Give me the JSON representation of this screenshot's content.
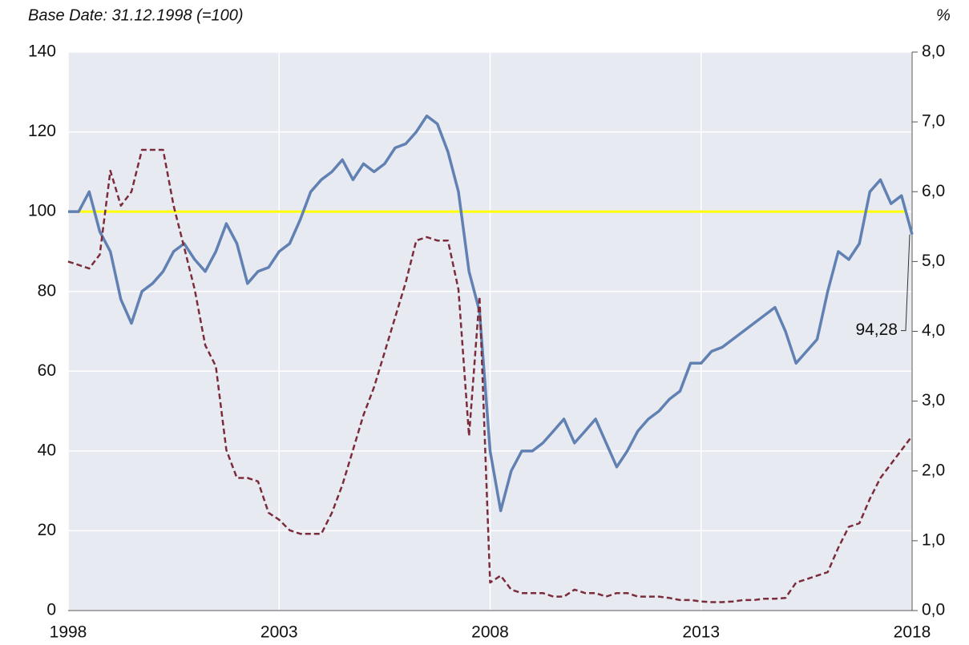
{
  "chart_data": {
    "type": "line",
    "subtitle": "Base Date: 31.12.1998 (=100)",
    "y2_unit": "%",
    "x": [
      1998,
      1998.25,
      1998.5,
      1998.75,
      1999,
      1999.25,
      1999.5,
      1999.75,
      2000,
      2000.25,
      2000.5,
      2000.75,
      2001,
      2001.25,
      2001.5,
      2001.75,
      2002,
      2002.25,
      2002.5,
      2002.75,
      2003,
      2003.25,
      2003.5,
      2003.75,
      2004,
      2004.25,
      2004.5,
      2004.75,
      2005,
      2005.25,
      2005.5,
      2005.75,
      2006,
      2006.25,
      2006.5,
      2006.75,
      2007,
      2007.25,
      2007.5,
      2007.75,
      2008,
      2008.25,
      2008.5,
      2008.75,
      2009,
      2009.25,
      2009.5,
      2009.75,
      2010,
      2010.25,
      2010.5,
      2010.75,
      2011,
      2011.25,
      2011.5,
      2011.75,
      2012,
      2012.25,
      2012.5,
      2012.75,
      2013,
      2013.25,
      2013.5,
      2013.75,
      2014,
      2014.25,
      2014.5,
      2014.75,
      2015,
      2015.25,
      2015.5,
      2015.75,
      2016,
      2016.25,
      2016.5,
      2016.75,
      2017,
      2017.25,
      2017.5,
      2017.75,
      2018
    ],
    "series": [
      {
        "color": "#6181b3",
        "axis": "y",
        "values": [
          100,
          100,
          105,
          95,
          90,
          78,
          72,
          80,
          82,
          85,
          90,
          92,
          88,
          85,
          90,
          97,
          92,
          82,
          85,
          86,
          90,
          92,
          98,
          105,
          108,
          110,
          113,
          108,
          112,
          110,
          112,
          116,
          117,
          120,
          124,
          122,
          115,
          105,
          85,
          75,
          40,
          25,
          35,
          40,
          40,
          42,
          45,
          48,
          42,
          45,
          48,
          42,
          36,
          40,
          45,
          48,
          50,
          53,
          55,
          62,
          62,
          65,
          66,
          68,
          70,
          72,
          74,
          76,
          70,
          62,
          65,
          68,
          80,
          90,
          88,
          92,
          105,
          108,
          102,
          104,
          94.28
        ]
      },
      {
        "color": "#7b2c3a",
        "axis": "y2",
        "dashed": true,
        "values": [
          5.0,
          4.95,
          4.9,
          5.1,
          6.3,
          5.8,
          6.0,
          6.6,
          6.6,
          6.6,
          5.8,
          5.2,
          4.6,
          3.8,
          3.5,
          2.3,
          1.9,
          1.9,
          1.85,
          1.4,
          1.3,
          1.15,
          1.1,
          1.1,
          1.1,
          1.4,
          1.8,
          2.3,
          2.8,
          3.2,
          3.7,
          4.2,
          4.7,
          5.3,
          5.35,
          5.3,
          5.3,
          4.6,
          2.5,
          4.5,
          0.4,
          0.5,
          0.3,
          0.25,
          0.25,
          0.25,
          0.2,
          0.2,
          0.3,
          0.25,
          0.25,
          0.2,
          0.25,
          0.25,
          0.2,
          0.2,
          0.2,
          0.18,
          0.15,
          0.15,
          0.13,
          0.12,
          0.12,
          0.13,
          0.15,
          0.15,
          0.17,
          0.17,
          0.18,
          0.4,
          0.45,
          0.5,
          0.55,
          0.9,
          1.2,
          1.25,
          1.6,
          1.9,
          2.1,
          2.3,
          2.5
        ]
      }
    ],
    "hline": {
      "y": 100,
      "color": "#ffff00"
    },
    "annotation": {
      "text": "94,28",
      "x": 2018,
      "y": 94.28
    },
    "xlim": [
      1998,
      2018
    ],
    "xticks": [
      1998,
      2003,
      2008,
      2013,
      2018
    ],
    "ylim": [
      0,
      140
    ],
    "yticks": [
      0,
      20,
      40,
      60,
      80,
      100,
      120,
      140
    ],
    "y2lim": [
      0,
      8
    ],
    "y2ticks": [
      {
        "value": 0,
        "label": "0,0"
      },
      {
        "value": 1,
        "label": "1,0"
      },
      {
        "value": 2,
        "label": "2,0"
      },
      {
        "value": 3,
        "label": "3,0"
      },
      {
        "value": 4,
        "label": "4,0"
      },
      {
        "value": 5,
        "label": "5,0"
      },
      {
        "value": 6,
        "label": "6,0"
      },
      {
        "value": 7,
        "label": "7,0"
      },
      {
        "value": 8,
        "label": "8,0"
      }
    ],
    "grid": true
  }
}
